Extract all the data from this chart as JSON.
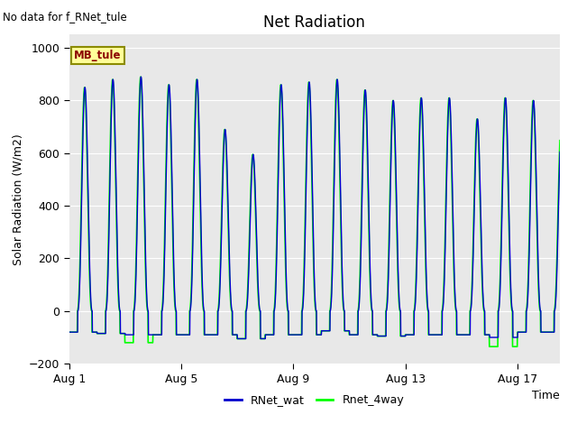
{
  "title": "Net Radiation",
  "no_data_text": "No data for f_RNet_tule",
  "ylabel": "Solar Radiation (W/m2)",
  "xlabel": "Time",
  "ylim": [
    -200,
    1050
  ],
  "yticks": [
    -200,
    0,
    200,
    400,
    600,
    800,
    1000
  ],
  "xtick_labels": [
    "Aug 1",
    "Aug 5",
    "Aug 9",
    "Aug 13",
    "Aug 17"
  ],
  "xtick_positions": [
    0,
    4,
    8,
    12,
    16
  ],
  "legend_label1": "RNet_wat",
  "legend_label2": "Rnet_4way",
  "legend_box_label": "MB_tule",
  "color_blue": "#0000CD",
  "color_green": "#00FF00",
  "bg_color": "#E8E8E8",
  "n_days": 18,
  "day_peaks_blue": [
    850,
    880,
    890,
    860,
    880,
    690,
    595,
    860,
    870,
    880,
    840,
    800,
    810,
    810,
    730,
    810,
    800,
    715
  ],
  "day_peaks_green": [
    850,
    880,
    890,
    860,
    880,
    690,
    595,
    860,
    870,
    880,
    840,
    800,
    810,
    810,
    730,
    810,
    800,
    715
  ],
  "day_nights_blue": [
    -80,
    -85,
    -90,
    -90,
    -90,
    -90,
    -105,
    -90,
    -90,
    -75,
    -90,
    -95,
    -90,
    -90,
    -90,
    -100,
    -80,
    -80
  ],
  "day_nights_green": [
    -80,
    -85,
    -120,
    -90,
    -90,
    -90,
    -105,
    -90,
    -90,
    -75,
    -90,
    -95,
    -90,
    -90,
    -90,
    -135,
    -80,
    -80
  ],
  "xlim_end": 17.5
}
